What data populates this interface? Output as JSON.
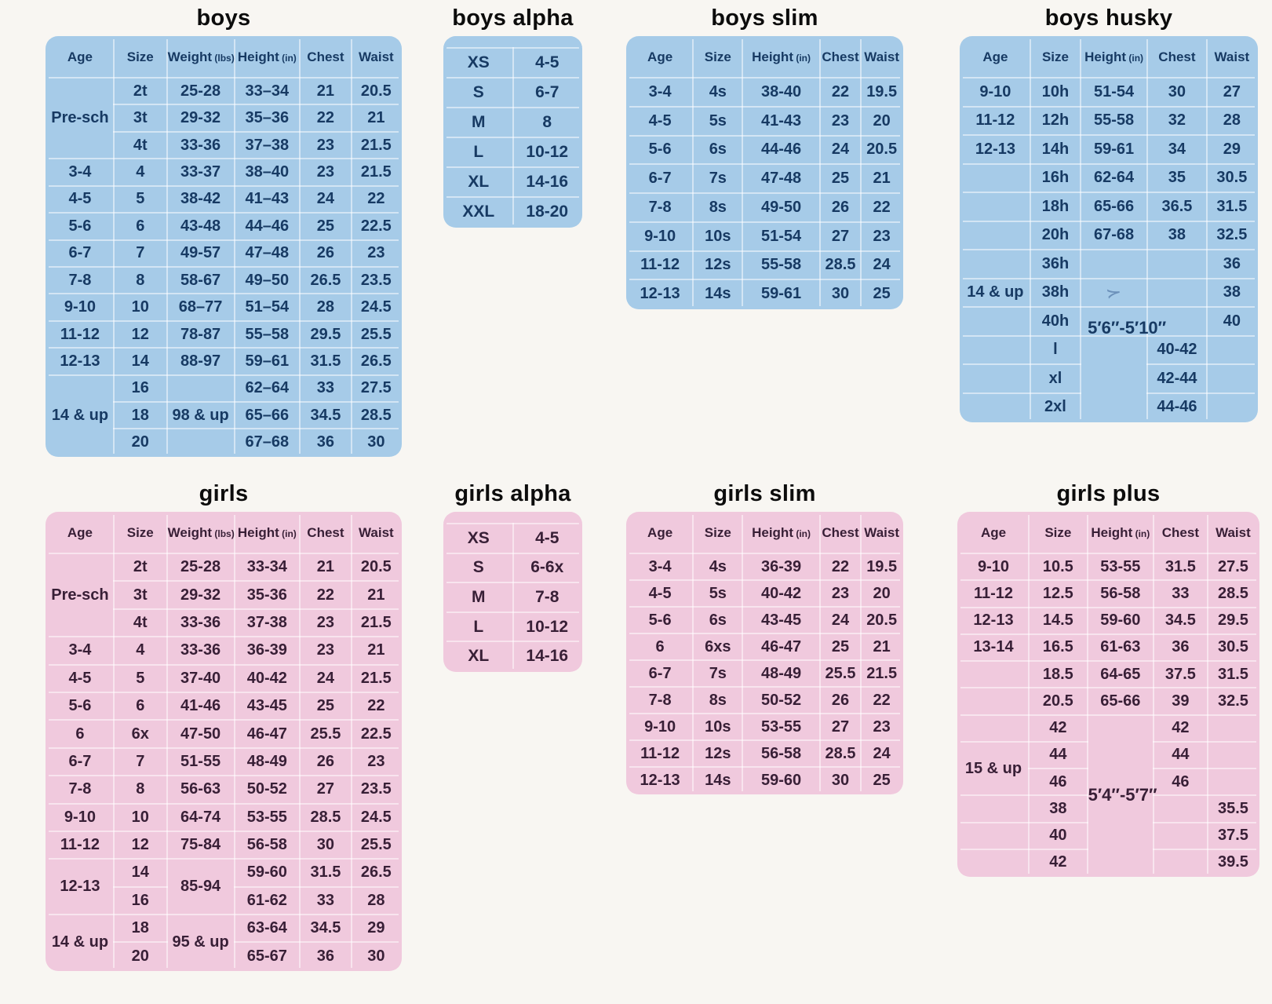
{
  "page": {
    "background": "#f8f6f2"
  },
  "theme": {
    "blue_bg": "#a6cbe8",
    "blue_text": "#173a63",
    "pink_bg": "#f0c9dd",
    "pink_text": "#381f36",
    "title_color": "#0c0c0c",
    "gridline": "rgba(255,255,255,0.5)"
  },
  "tables": [
    {
      "id": "boys",
      "title": "boys",
      "theme": "blue",
      "kind": "grid",
      "widths": [
        "19%",
        "15%",
        "19%",
        "18.5%",
        "14.5%",
        "14%"
      ],
      "header": [
        {
          "label": "Age"
        },
        {
          "label": "Size"
        },
        {
          "label": "Weight",
          "unit": "(lbs)"
        },
        {
          "label": "Height",
          "unit": "(in)"
        },
        {
          "label": "Chest"
        },
        {
          "label": "Waist"
        }
      ],
      "rows": [
        [
          {
            "t": "Pre-sch",
            "rs": 3
          },
          "2t",
          "25-28",
          "33–34",
          "21",
          "20.5"
        ],
        [
          null,
          "3t",
          "29-32",
          "35–36",
          "22",
          "21"
        ],
        [
          null,
          "4t",
          "33-36",
          "37–38",
          "23",
          "21.5"
        ],
        [
          "3-4",
          "4",
          "33-37",
          "38–40",
          "23",
          "21.5"
        ],
        [
          "4-5",
          "5",
          "38-42",
          "41–43",
          "24",
          "22"
        ],
        [
          "5-6",
          "6",
          "43-48",
          "44–46",
          "25",
          "22.5"
        ],
        [
          "6-7",
          "7",
          "49-57",
          "47–48",
          "26",
          "23"
        ],
        [
          "7-8",
          "8",
          "58-67",
          "49–50",
          "26.5",
          "23.5"
        ],
        [
          "9-10",
          "10",
          "68–77",
          "51–54",
          "28",
          "24.5"
        ],
        [
          "11-12",
          "12",
          "78-87",
          "55–58",
          "29.5",
          "25.5"
        ],
        [
          "12-13",
          "14",
          "88-97",
          "59–61",
          "31.5",
          "26.5"
        ],
        [
          {
            "t": "14 & up",
            "rs": 3
          },
          "16",
          "",
          "62–64",
          "33",
          "27.5"
        ],
        [
          null,
          "18",
          "98 & up",
          "65–66",
          "34.5",
          "28.5"
        ],
        [
          null,
          "20",
          "",
          "67–68",
          "36",
          "30"
        ]
      ]
    },
    {
      "id": "boys-alpha",
      "title": "boys alpha",
      "theme": "blue",
      "kind": "alpha",
      "widths": [
        "50%",
        "50%"
      ],
      "header": [],
      "rows": [
        [
          "XS",
          "4-5"
        ],
        [
          "S",
          "6-7"
        ],
        [
          "M",
          "8"
        ],
        [
          "L",
          "10-12"
        ],
        [
          "XL",
          "14-16"
        ],
        [
          "XXL",
          "18-20"
        ]
      ]
    },
    {
      "id": "boys-slim",
      "title": "boys slim",
      "theme": "blue",
      "kind": "grid",
      "widths": [
        "24%",
        "18%",
        "28%",
        "15%",
        "15%"
      ],
      "header": [
        {
          "label": "Age"
        },
        {
          "label": "Size"
        },
        {
          "label": "Height",
          "unit": "(in)"
        },
        {
          "label": "Chest"
        },
        {
          "label": "Waist"
        }
      ],
      "rows": [
        [
          "3-4",
          "4s",
          "38-40",
          "22",
          "19.5"
        ],
        [
          "4-5",
          "5s",
          "41-43",
          "23",
          "20"
        ],
        [
          "5-6",
          "6s",
          "44-46",
          "24",
          "20.5"
        ],
        [
          "6-7",
          "7s",
          "47-48",
          "25",
          "21"
        ],
        [
          "7-8",
          "8s",
          "49-50",
          "26",
          "22"
        ],
        [
          "9-10",
          "10s",
          "51-54",
          "27",
          "23"
        ],
        [
          "11-12",
          "12s",
          "55-58",
          "28.5",
          "24"
        ],
        [
          "12-13",
          "14s",
          "59-61",
          "30",
          "25"
        ]
      ]
    },
    {
      "id": "boys-husky",
      "title": "boys husky",
      "theme": "blue",
      "kind": "grid",
      "widths": [
        "23.5%",
        "17%",
        "22.5%",
        "20%",
        "17%"
      ],
      "header": [
        {
          "label": "Age"
        },
        {
          "label": "Size"
        },
        {
          "label": "Height",
          "unit": "(in)"
        },
        {
          "label": "Chest"
        },
        {
          "label": "Waist"
        }
      ],
      "rows": [
        [
          "9-10",
          "10h",
          "51-54",
          "30",
          "27"
        ],
        [
          "11-12",
          "12h",
          "55-58",
          "32",
          "28"
        ],
        [
          "12-13",
          "14h",
          "59-61",
          "34",
          "29"
        ],
        [
          "",
          "16h",
          "62-64",
          "35",
          "30.5"
        ],
        [
          "",
          "18h",
          "65-66",
          "36.5",
          "31.5"
        ],
        [
          "",
          "20h",
          "67-68",
          "38",
          "32.5"
        ],
        [
          "",
          "36h",
          "",
          "",
          "36"
        ],
        [
          "14 & up",
          "38h",
          {
            "t": "≻",
            "cls": "pen",
            "name": "pen-mark"
          },
          "",
          "38"
        ],
        [
          "",
          "40h",
          "",
          "",
          "40"
        ],
        [
          "",
          "l",
          {
            "t": "5′6″-5′10″",
            "rs": 3,
            "cls": "up-label",
            "name": "height-range-label"
          },
          "40-42",
          ""
        ],
        [
          "",
          "xl",
          null,
          "42-44",
          ""
        ],
        [
          "",
          "2xl",
          null,
          "44-46",
          ""
        ]
      ]
    },
    {
      "id": "girls",
      "title": "girls",
      "theme": "pink",
      "kind": "grid",
      "widths": [
        "19%",
        "15%",
        "19%",
        "18.5%",
        "14.5%",
        "14%"
      ],
      "header": [
        {
          "label": "Age"
        },
        {
          "label": "Size"
        },
        {
          "label": "Weight",
          "unit": "(lbs)"
        },
        {
          "label": "Height",
          "unit": "(in)"
        },
        {
          "label": "Chest"
        },
        {
          "label": "Waist"
        }
      ],
      "rows": [
        [
          {
            "t": "Pre-sch",
            "rs": 3
          },
          "2t",
          "25-28",
          "33-34",
          "21",
          "20.5"
        ],
        [
          null,
          "3t",
          "29-32",
          "35-36",
          "22",
          "21"
        ],
        [
          null,
          "4t",
          "33-36",
          "37-38",
          "23",
          "21.5"
        ],
        [
          "3-4",
          "4",
          "33-36",
          "36-39",
          "23",
          "21"
        ],
        [
          "4-5",
          "5",
          "37-40",
          "40-42",
          "24",
          "21.5"
        ],
        [
          "5-6",
          "6",
          "41-46",
          "43-45",
          "25",
          "22"
        ],
        [
          "6",
          "6x",
          "47-50",
          "46-47",
          "25.5",
          "22.5"
        ],
        [
          "6-7",
          "7",
          "51-55",
          "48-49",
          "26",
          "23"
        ],
        [
          "7-8",
          "8",
          "56-63",
          "50-52",
          "27",
          "23.5"
        ],
        [
          "9-10",
          "10",
          "64-74",
          "53-55",
          "28.5",
          "24.5"
        ],
        [
          "11-12",
          "12",
          "75-84",
          "56-58",
          "30",
          "25.5"
        ],
        [
          {
            "t": "12-13",
            "rs": 2
          },
          "14",
          {
            "t": "85-94",
            "rs": 2
          },
          "59-60",
          "31.5",
          "26.5"
        ],
        [
          null,
          "16",
          null,
          "61-62",
          "33",
          "28"
        ],
        [
          {
            "t": "14 & up",
            "rs": 2
          },
          "18",
          {
            "t": "95 & up",
            "rs": 2
          },
          "63-64",
          "34.5",
          "29"
        ],
        [
          null,
          "20",
          null,
          "65-67",
          "36",
          "30"
        ]
      ]
    },
    {
      "id": "girls-alpha",
      "title": "girls alpha",
      "theme": "pink",
      "kind": "alpha",
      "widths": [
        "50%",
        "50%"
      ],
      "header": [],
      "rows": [
        [
          "XS",
          "4-5"
        ],
        [
          "S",
          "6-6x"
        ],
        [
          "M",
          "7-8"
        ],
        [
          "L",
          "10-12"
        ],
        [
          "XL",
          "14-16"
        ]
      ]
    },
    {
      "id": "girls-slim",
      "title": "girls slim",
      "theme": "pink",
      "kind": "grid",
      "widths": [
        "24%",
        "18%",
        "28%",
        "15%",
        "15%"
      ],
      "header": [
        {
          "label": "Age"
        },
        {
          "label": "Size"
        },
        {
          "label": "Height",
          "unit": "(in)"
        },
        {
          "label": "Chest"
        },
        {
          "label": "Waist"
        }
      ],
      "rows": [
        [
          "3-4",
          "4s",
          "36-39",
          "22",
          "19.5"
        ],
        [
          "4-5",
          "5s",
          "40-42",
          "23",
          "20"
        ],
        [
          "5-6",
          "6s",
          "43-45",
          "24",
          "20.5"
        ],
        [
          "6",
          "6xs",
          "46-47",
          "25",
          "21"
        ],
        [
          "6-7",
          "7s",
          "48-49",
          "25.5",
          "21.5"
        ],
        [
          "7-8",
          "8s",
          "50-52",
          "26",
          "22"
        ],
        [
          "9-10",
          "10s",
          "53-55",
          "27",
          "23"
        ],
        [
          "11-12",
          "12s",
          "56-58",
          "28.5",
          "24"
        ],
        [
          "12-13",
          "14s",
          "59-60",
          "30",
          "25"
        ]
      ]
    },
    {
      "id": "girls-plus",
      "title": "girls plus",
      "theme": "pink",
      "kind": "grid",
      "widths": [
        "23.5%",
        "19.5%",
        "22%",
        "18%",
        "17%"
      ],
      "header": [
        {
          "label": "Age"
        },
        {
          "label": "Size"
        },
        {
          "label": "Height",
          "unit": "(in)"
        },
        {
          "label": "Chest"
        },
        {
          "label": "Waist"
        }
      ],
      "rows": [
        [
          "9-10",
          "10.5",
          "53-55",
          "31.5",
          "27.5"
        ],
        [
          "11-12",
          "12.5",
          "56-58",
          "33",
          "28.5"
        ],
        [
          "12-13",
          "14.5",
          "59-60",
          "34.5",
          "29.5"
        ],
        [
          "13-14",
          "16.5",
          "61-63",
          "36",
          "30.5"
        ],
        [
          "",
          "18.5",
          "64-65",
          "37.5",
          "31.5"
        ],
        [
          "",
          "20.5",
          "65-66",
          "39",
          "32.5"
        ],
        [
          "",
          "42",
          {
            "t": "5′4″-5′7″",
            "rs": 6,
            "cls": "mid-label",
            "name": "height-range-label"
          },
          "42",
          ""
        ],
        [
          {
            "t": "15 & up",
            "rs": 2
          },
          "44",
          null,
          "44",
          ""
        ],
        [
          null,
          "46",
          null,
          "46",
          ""
        ],
        [
          "",
          "38",
          null,
          "",
          "35.5"
        ],
        [
          "",
          "40",
          null,
          "",
          "37.5"
        ],
        [
          "",
          "42",
          null,
          "",
          "39.5"
        ]
      ]
    }
  ]
}
